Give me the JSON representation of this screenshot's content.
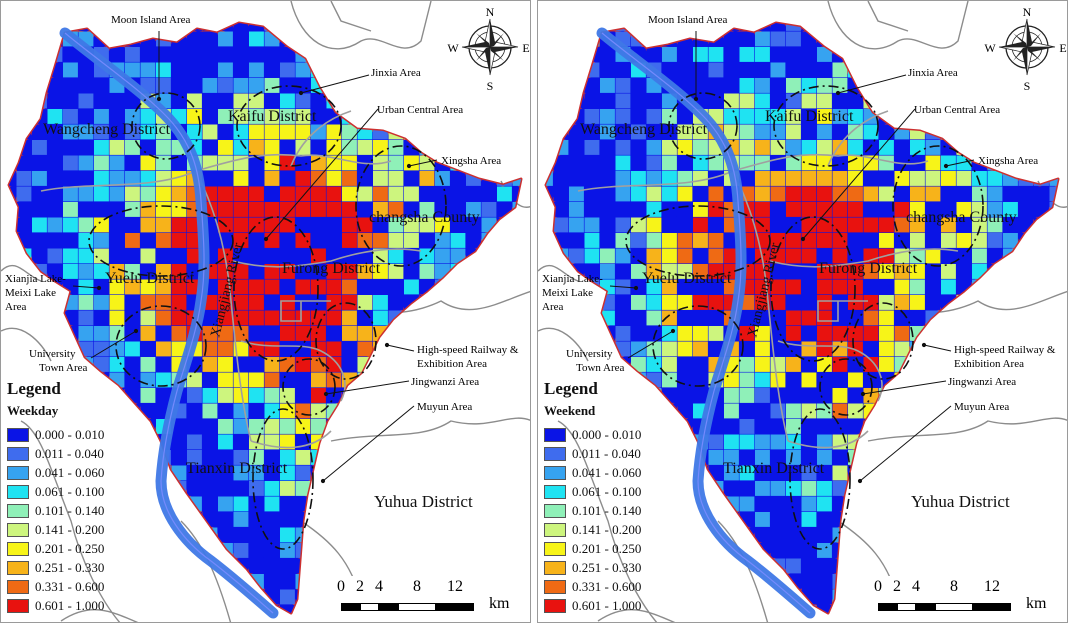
{
  "panels": [
    {
      "key": "weekday",
      "legend_title": "Legend",
      "legend_sub": "Weekday",
      "labels": {
        "moon_island": "Moon Island Area",
        "jinxia": "Jinxia Area",
        "urban_central": "Urban Central Area",
        "xingsha": "Xingsha Area",
        "xianjia_1": "Xianjia Lake-",
        "xianjia_2": "Meixi Lake",
        "xianjia_3": "Area",
        "university_1": "University",
        "university_2": "Town Area",
        "hsr_1": "High-speed Railway &",
        "hsr_2": "Exhibition Area",
        "jingwanzi": "Jingwanzi Area",
        "muyun": "Muyun Area",
        "wangcheng": "Wangcheng District",
        "kaifu": "Kaifu District",
        "changsha": "changsha County",
        "yuelu": "Yuelu District",
        "furong": "Furong District",
        "tianxin": "Tianxin District",
        "yuhua": "Yuhua District",
        "river": "Xiangjiang River"
      }
    },
    {
      "key": "weekend",
      "legend_title": "Legend",
      "legend_sub": "Weekend",
      "labels": {
        "moon_island": "Moon Island Area",
        "jinxia": "Jinxia Area",
        "urban_central": "Urban Central Area",
        "xingsha": "Xingsha Area",
        "xianjia_1": "Xianjia Lake-",
        "xianjia_2": "Meixi Lake",
        "xianjia_3": "Area",
        "university_1": "University",
        "university_2": "Town Area",
        "hsr_1": "High-speed Railway &",
        "hsr_2": "Exhibition Area",
        "jingwanzi": "Jingwanzi Area",
        "muyun": "Muyun Area",
        "wangcheng": "Wangcheng District",
        "kaifu": "Kaifu District",
        "changsha": "changsha County",
        "yuelu": "Yuelu District",
        "furong": "Furong District",
        "tianxin": "Tianxin District",
        "yuhua": "Yuhua District",
        "river": "Xiangjiang River"
      }
    }
  ],
  "legend_classes": [
    {
      "range": "0.000 - 0.010",
      "color": "#0a14e6"
    },
    {
      "range": "0.011 - 0.040",
      "color": "#3f6cee"
    },
    {
      "range": "0.041 - 0.060",
      "color": "#36a3f0"
    },
    {
      "range": "0.061 - 0.100",
      "color": "#1fe3f2"
    },
    {
      "range": "0.101 - 0.140",
      "color": "#8ff0b8"
    },
    {
      "range": "0.141 - 0.200",
      "color": "#cdf57e"
    },
    {
      "range": "0.201 - 0.250",
      "color": "#f7f418"
    },
    {
      "range": "0.251 - 0.330",
      "color": "#f7b31a"
    },
    {
      "range": "0.331 - 0.600",
      "color": "#ef6a14"
    },
    {
      "range": "0.601 - 1.000",
      "color": "#e8120f"
    }
  ],
  "scale": {
    "ticks": [
      "0",
      "2",
      "4",
      "8",
      "12"
    ],
    "unit": "km"
  },
  "compass": {
    "n": "N",
    "s": "S",
    "e": "E",
    "w": "W"
  }
}
